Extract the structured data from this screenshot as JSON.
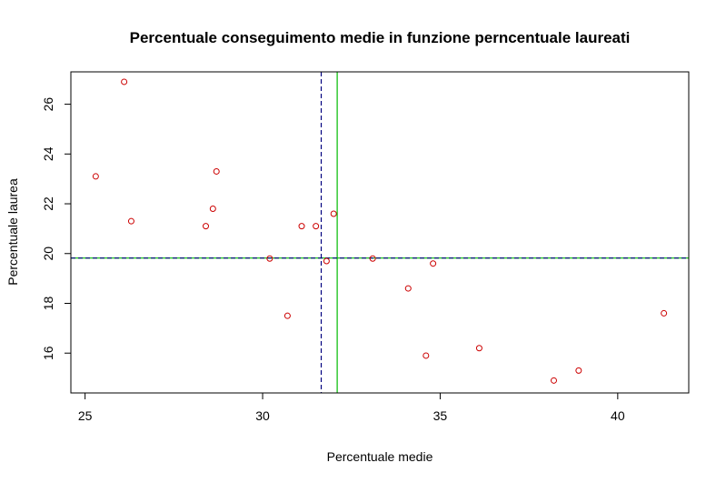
{
  "chart_data": {
    "type": "scatter",
    "title": "Percentuale conseguimento medie in funzione perncentuale laureati",
    "xlabel": "Percentuale medie",
    "ylabel": "Percentuale laurea",
    "xlim": [
      24.6,
      42.0
    ],
    "ylim": [
      14.4,
      27.3
    ],
    "xticks": [
      25,
      30,
      35,
      40
    ],
    "yticks": [
      16,
      18,
      20,
      22,
      24,
      26
    ],
    "xtick_labels": [
      "25",
      "30",
      "35",
      "40"
    ],
    "ytick_labels": [
      "16",
      "18",
      "20",
      "22",
      "24",
      "26"
    ],
    "grid": false,
    "legend": "none",
    "point_color": "#cc0000",
    "points": [
      {
        "x": 25.3,
        "y": 23.1
      },
      {
        "x": 26.1,
        "y": 26.9
      },
      {
        "x": 26.3,
        "y": 21.3
      },
      {
        "x": 28.4,
        "y": 21.1
      },
      {
        "x": 28.6,
        "y": 21.8
      },
      {
        "x": 28.7,
        "y": 23.3
      },
      {
        "x": 30.2,
        "y": 19.8
      },
      {
        "x": 30.7,
        "y": 17.5
      },
      {
        "x": 31.1,
        "y": 21.1
      },
      {
        "x": 31.5,
        "y": 21.1
      },
      {
        "x": 31.8,
        "y": 19.7
      },
      {
        "x": 32.0,
        "y": 21.6
      },
      {
        "x": 33.1,
        "y": 19.8
      },
      {
        "x": 34.1,
        "y": 18.6
      },
      {
        "x": 34.6,
        "y": 15.9
      },
      {
        "x": 34.8,
        "y": 19.6
      },
      {
        "x": 36.1,
        "y": 16.2
      },
      {
        "x": 38.2,
        "y": 14.9
      },
      {
        "x": 38.9,
        "y": 15.3
      },
      {
        "x": 41.3,
        "y": 17.6
      }
    ],
    "reference_lines": [
      {
        "orientation": "vertical",
        "value": 31.65,
        "color": "#000080",
        "style": "dashed"
      },
      {
        "orientation": "vertical",
        "value": 32.1,
        "color": "#00bb00",
        "style": "solid"
      },
      {
        "orientation": "horizontal",
        "value": 19.82,
        "color": "#00bb00",
        "style": "solid"
      },
      {
        "orientation": "horizontal",
        "value": 19.82,
        "color": "#000080",
        "style": "dashed"
      }
    ]
  }
}
